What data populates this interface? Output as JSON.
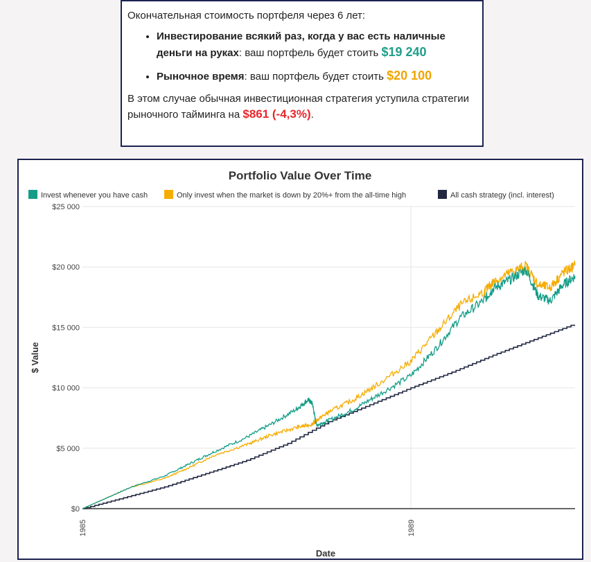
{
  "summary": {
    "intro": "Окончательная стоимость портфеля через 6 лет:",
    "item1_bold": "Инвестирование всякий раз, когда у вас есть наличные деньги на руках",
    "item1_text": ": ваш портфель будет стоить ",
    "item1_amount": "$19 240",
    "item2_bold": "Рыночное время",
    "item2_text": ": ваш портфель будет стоить ",
    "item2_amount": "$20 100",
    "conclusion_text": "В этом случае обычная инвестиционная стратегия уступила стратегии рыночного тайминга на ",
    "conclusion_amount": "$861 (-4,3%)",
    "conclusion_end": "."
  },
  "colors": {
    "invest_cash": "#139d87",
    "market_timing": "#f5ac00",
    "cash": "#222842",
    "border": "#1b2250",
    "red": "#e8262b"
  },
  "chart_data": {
    "type": "line",
    "title": "Portfolio Value Over Time",
    "xlabel": "Date",
    "ylabel": "$ Value",
    "x_ticks": [
      "1985",
      "1989"
    ],
    "y_ticks": [
      "$0",
      "$5 000",
      "$10 000",
      "$15 000",
      "$20 000",
      "$25 000"
    ],
    "ylim": [
      0,
      25000
    ],
    "xlim": [
      1985.0,
      1991.0
    ],
    "grid": true,
    "legend_position": "top",
    "series": [
      {
        "name": "Invest whenever you have cash",
        "color": "#139d87",
        "x": [
          1985.0,
          1985.3,
          1985.6,
          1986.0,
          1986.3,
          1986.6,
          1987.0,
          1987.3,
          1987.6,
          1987.75,
          1987.8,
          1987.85,
          1988.0,
          1988.3,
          1988.6,
          1989.0,
          1989.3,
          1989.6,
          1989.9,
          1990.0,
          1990.2,
          1990.4,
          1990.55,
          1990.7,
          1990.85,
          1991.0
        ],
        "y": [
          0,
          900,
          1800,
          2700,
          3700,
          4700,
          5900,
          7000,
          8200,
          9000,
          8700,
          6900,
          7300,
          8200,
          9400,
          11000,
          13200,
          15800,
          17300,
          18200,
          18900,
          19800,
          17600,
          17200,
          18500,
          19240
        ]
      },
      {
        "name": "Only invest when the market is down by 20%+ from the all-time high",
        "color": "#f5ac00",
        "x": [
          1985.0,
          1985.3,
          1985.6,
          1986.0,
          1986.3,
          1986.6,
          1987.0,
          1987.3,
          1987.6,
          1987.8,
          1987.85,
          1988.0,
          1988.3,
          1988.6,
          1989.0,
          1989.3,
          1989.6,
          1989.9,
          1990.0,
          1990.2,
          1990.4,
          1990.55,
          1990.7,
          1990.85,
          1991.0
        ],
        "y": [
          0,
          900,
          1800,
          2500,
          3400,
          4400,
          5300,
          6100,
          6700,
          7000,
          7300,
          8000,
          9000,
          10300,
          12200,
          14500,
          16800,
          18000,
          18700,
          19500,
          20100,
          18500,
          18300,
          19500,
          20100
        ]
      },
      {
        "name": "All cash strategy (incl. interest)",
        "color": "#222842",
        "x": [
          1985.0,
          1985.5,
          1986.0,
          1986.5,
          1987.0,
          1987.5,
          1988.0,
          1988.5,
          1989.0,
          1989.5,
          1990.0,
          1990.5,
          1991.0
        ],
        "y": [
          0,
          900,
          1800,
          2900,
          4000,
          5400,
          7200,
          8600,
          10000,
          11300,
          12700,
          14000,
          15300
        ]
      }
    ]
  }
}
